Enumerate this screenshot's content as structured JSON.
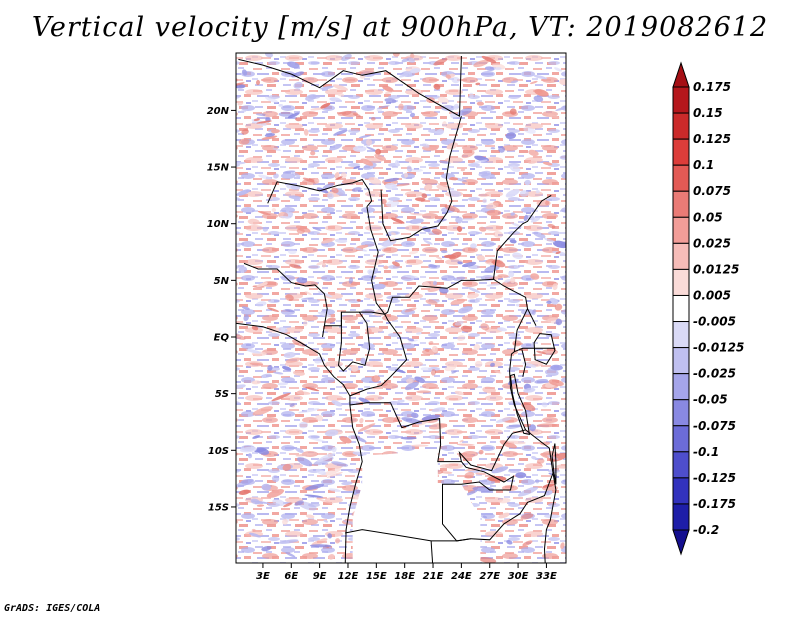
{
  "title": "Vertical velocity [m/s] at 900hPa, VT: 2019082612",
  "credit": "GrADS: IGES/COLA",
  "map": {
    "lon_range": [
      0,
      34
    ],
    "lat_range": [
      -20,
      25
    ],
    "lat_ticks": [
      {
        "lat": 20,
        "label": "20N"
      },
      {
        "lat": 15,
        "label": "15N"
      },
      {
        "lat": 10,
        "label": "10N"
      },
      {
        "lat": 5,
        "label": "5N"
      },
      {
        "lat": 0,
        "label": "EQ"
      },
      {
        "lat": -5,
        "label": "5S"
      },
      {
        "lat": -10,
        "label": "10S"
      },
      {
        "lat": -15,
        "label": "15S"
      }
    ],
    "lon_ticks": [
      {
        "lon": 3,
        "label": "3E"
      },
      {
        "lon": 6,
        "label": "6E"
      },
      {
        "lon": 9,
        "label": "9E"
      },
      {
        "lon": 12,
        "label": "12E"
      },
      {
        "lon": 15,
        "label": "15E"
      },
      {
        "lon": 18,
        "label": "18E"
      },
      {
        "lon": 21,
        "label": "21E"
      },
      {
        "lon": 24,
        "label": "24E"
      },
      {
        "lon": 27,
        "label": "27E"
      },
      {
        "lon": 30,
        "label": "30E"
      },
      {
        "lon": 33,
        "label": "33E"
      }
    ]
  },
  "colorbar": {
    "labels": [
      "0.175",
      "0.15",
      "0.125",
      "0.1",
      "0.075",
      "0.05",
      "0.025",
      "0.0125",
      "0.005",
      "-0.005",
      "-0.0125",
      "-0.025",
      "-0.05",
      "-0.075",
      "-0.1",
      "-0.125",
      "-0.175",
      "-0.2"
    ],
    "colors": [
      "#a50f15",
      "#b5171c",
      "#cb2a2a",
      "#dc3d3a",
      "#e25a55",
      "#ea7b76",
      "#f29d98",
      "#f6bcb8",
      "#fadbd8",
      "#ffffff",
      "#dadaf6",
      "#c0c0f0",
      "#a5a5ea",
      "#8989e2",
      "#6c6cd8",
      "#4e4ecc",
      "#3232bd",
      "#1e1ea8",
      "#140f8f"
    ]
  },
  "colors": {
    "upward_light": "#c9c9f5",
    "downward_light": "#f7c6c2",
    "border": "#000000"
  }
}
